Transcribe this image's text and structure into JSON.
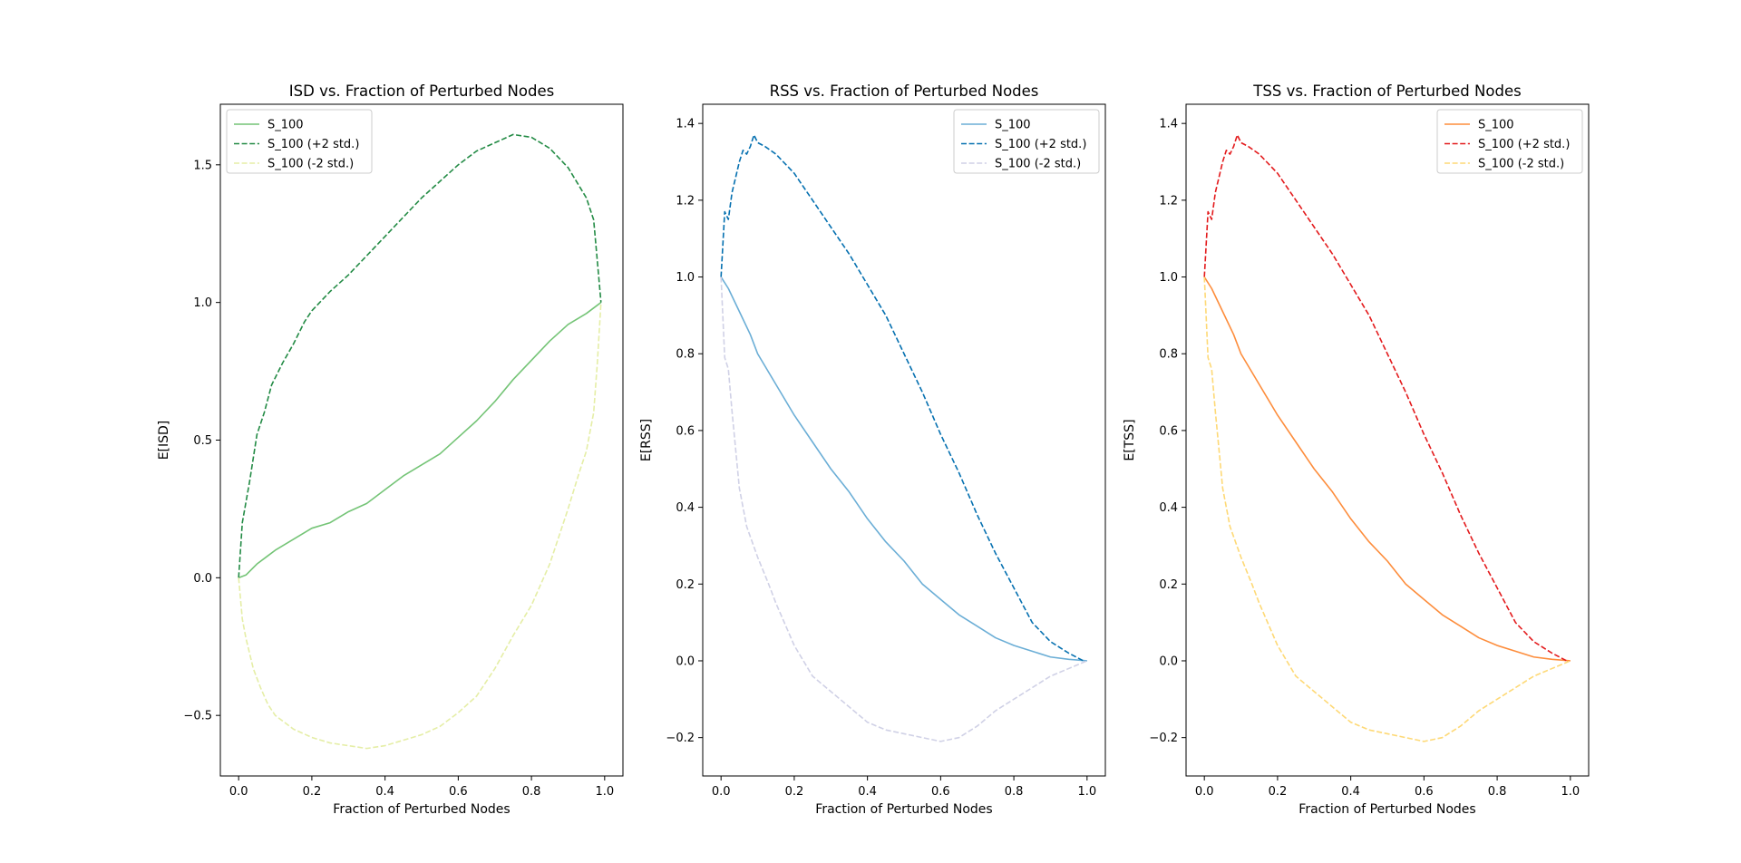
{
  "figure": {
    "background": "#ffffff"
  },
  "chart_data": [
    {
      "type": "line",
      "title": "ISD vs. Fraction of Perturbed Nodes",
      "xlabel": "Fraction of Perturbed Nodes",
      "ylabel": "E[ISD]",
      "xlim": [
        -0.05,
        1.05
      ],
      "ylim": [
        -0.72,
        1.72
      ],
      "xticks": [
        0.0,
        0.2,
        0.4,
        0.6,
        0.8,
        1.0
      ],
      "xtick_labels": [
        "0.0",
        "0.2",
        "0.4",
        "0.6",
        "0.8",
        "1.0"
      ],
      "yticks": [
        -0.5,
        0.0,
        0.5,
        1.0,
        1.5
      ],
      "ytick_labels": [
        "−0.5",
        "0.0",
        "0.5",
        "1.0",
        "1.5"
      ],
      "grid": false,
      "legend_position": "upper-left",
      "series": [
        {
          "name": "S_100",
          "color": "#74c476",
          "dash": "solid",
          "x": [
            0.0,
            0.02,
            0.05,
            0.08,
            0.1,
            0.15,
            0.2,
            0.25,
            0.3,
            0.35,
            0.4,
            0.45,
            0.5,
            0.55,
            0.6,
            0.65,
            0.7,
            0.75,
            0.8,
            0.85,
            0.9,
            0.95,
            0.98,
            0.99
          ],
          "y": [
            0.0,
            0.01,
            0.05,
            0.08,
            0.1,
            0.14,
            0.18,
            0.2,
            0.24,
            0.27,
            0.32,
            0.37,
            0.41,
            0.45,
            0.51,
            0.57,
            0.64,
            0.72,
            0.79,
            0.86,
            0.92,
            0.96,
            0.99,
            1.0
          ]
        },
        {
          "name": "S_100 (+2 std.)",
          "color": "#238b45",
          "dash": "dashed",
          "x": [
            0.0,
            0.01,
            0.03,
            0.05,
            0.07,
            0.09,
            0.12,
            0.15,
            0.18,
            0.2,
            0.25,
            0.3,
            0.35,
            0.4,
            0.45,
            0.5,
            0.55,
            0.6,
            0.65,
            0.7,
            0.75,
            0.8,
            0.85,
            0.9,
            0.95,
            0.97,
            0.98,
            0.99
          ],
          "y": [
            0.0,
            0.2,
            0.35,
            0.52,
            0.6,
            0.7,
            0.78,
            0.85,
            0.93,
            0.97,
            1.04,
            1.1,
            1.17,
            1.24,
            1.31,
            1.38,
            1.44,
            1.5,
            1.55,
            1.58,
            1.61,
            1.6,
            1.56,
            1.49,
            1.38,
            1.3,
            1.15,
            1.0
          ]
        },
        {
          "name": "S_100 (-2 std.)",
          "color": "#e5eea6",
          "dash": "dashed",
          "x": [
            0.0,
            0.01,
            0.02,
            0.04,
            0.06,
            0.08,
            0.1,
            0.15,
            0.2,
            0.25,
            0.3,
            0.35,
            0.4,
            0.45,
            0.5,
            0.55,
            0.6,
            0.65,
            0.7,
            0.75,
            0.8,
            0.85,
            0.9,
            0.93,
            0.95,
            0.97,
            0.98,
            0.99
          ],
          "y": [
            0.0,
            -0.15,
            -0.22,
            -0.33,
            -0.4,
            -0.46,
            -0.5,
            -0.55,
            -0.58,
            -0.6,
            -0.61,
            -0.62,
            -0.61,
            -0.59,
            -0.57,
            -0.54,
            -0.49,
            -0.43,
            -0.33,
            -0.21,
            -0.1,
            0.05,
            0.25,
            0.38,
            0.46,
            0.6,
            0.78,
            1.0
          ]
        }
      ]
    },
    {
      "type": "line",
      "title": "RSS vs. Fraction of Perturbed Nodes",
      "xlabel": "Fraction of Perturbed Nodes",
      "ylabel": "E[RSS]",
      "xlim": [
        -0.05,
        1.05
      ],
      "ylim": [
        -0.3,
        1.45
      ],
      "xticks": [
        0.0,
        0.2,
        0.4,
        0.6,
        0.8,
        1.0
      ],
      "xtick_labels": [
        "0.0",
        "0.2",
        "0.4",
        "0.6",
        "0.8",
        "1.0"
      ],
      "yticks": [
        -0.2,
        0.0,
        0.2,
        0.4,
        0.6,
        0.8,
        1.0,
        1.2,
        1.4
      ],
      "ytick_labels": [
        "−0.2",
        "0.0",
        "0.2",
        "0.4",
        "0.6",
        "0.8",
        "1.0",
        "1.2",
        "1.4"
      ],
      "grid": false,
      "legend_position": "upper-right",
      "series": [
        {
          "name": "S_100",
          "color": "#6baed6",
          "dash": "solid",
          "x": [
            0.0,
            0.02,
            0.05,
            0.08,
            0.1,
            0.15,
            0.2,
            0.25,
            0.3,
            0.35,
            0.4,
            0.45,
            0.5,
            0.55,
            0.6,
            0.65,
            0.7,
            0.75,
            0.8,
            0.85,
            0.9,
            0.95,
            1.0
          ],
          "y": [
            1.0,
            0.97,
            0.91,
            0.85,
            0.8,
            0.72,
            0.64,
            0.57,
            0.5,
            0.44,
            0.37,
            0.31,
            0.26,
            0.2,
            0.16,
            0.12,
            0.09,
            0.06,
            0.04,
            0.025,
            0.01,
            0.004,
            0.0
          ]
        },
        {
          "name": "S_100 (+2 std.)",
          "color": "#0570b0",
          "dash": "dashed",
          "x": [
            0.0,
            0.01,
            0.02,
            0.03,
            0.05,
            0.06,
            0.07,
            0.08,
            0.09,
            0.1,
            0.12,
            0.15,
            0.2,
            0.25,
            0.3,
            0.35,
            0.4,
            0.45,
            0.5,
            0.55,
            0.6,
            0.65,
            0.7,
            0.75,
            0.8,
            0.85,
            0.9,
            0.95,
            0.99
          ],
          "y": [
            1.0,
            1.17,
            1.15,
            1.22,
            1.3,
            1.33,
            1.32,
            1.34,
            1.37,
            1.35,
            1.34,
            1.32,
            1.27,
            1.2,
            1.13,
            1.06,
            0.98,
            0.9,
            0.8,
            0.7,
            0.59,
            0.49,
            0.38,
            0.28,
            0.19,
            0.1,
            0.05,
            0.02,
            0.0
          ]
        },
        {
          "name": "S_100 (-2 std.)",
          "color": "#d0d1e6",
          "dash": "dashed",
          "x": [
            0.0,
            0.01,
            0.02,
            0.03,
            0.05,
            0.07,
            0.1,
            0.13,
            0.15,
            0.2,
            0.25,
            0.3,
            0.35,
            0.4,
            0.45,
            0.5,
            0.55,
            0.6,
            0.65,
            0.7,
            0.75,
            0.8,
            0.85,
            0.9,
            0.95,
            1.0
          ],
          "y": [
            1.0,
            0.79,
            0.76,
            0.65,
            0.45,
            0.35,
            0.27,
            0.2,
            0.15,
            0.04,
            -0.04,
            -0.08,
            -0.12,
            -0.16,
            -0.18,
            -0.19,
            -0.2,
            -0.21,
            -0.2,
            -0.17,
            -0.13,
            -0.1,
            -0.07,
            -0.04,
            -0.02,
            0.0
          ]
        }
      ]
    },
    {
      "type": "line",
      "title": "TSS vs. Fraction of Perturbed Nodes",
      "xlabel": "Fraction of Perturbed Nodes",
      "ylabel": "E[TSS]",
      "xlim": [
        -0.05,
        1.05
      ],
      "ylim": [
        -0.3,
        1.45
      ],
      "xticks": [
        0.0,
        0.2,
        0.4,
        0.6,
        0.8,
        1.0
      ],
      "xtick_labels": [
        "0.0",
        "0.2",
        "0.4",
        "0.6",
        "0.8",
        "1.0"
      ],
      "yticks": [
        -0.2,
        0.0,
        0.2,
        0.4,
        0.6,
        0.8,
        1.0,
        1.2,
        1.4
      ],
      "ytick_labels": [
        "−0.2",
        "0.0",
        "0.2",
        "0.4",
        "0.6",
        "0.8",
        "1.0",
        "1.2",
        "1.4"
      ],
      "grid": false,
      "legend_position": "upper-right",
      "series": [
        {
          "name": "S_100",
          "color": "#fd8d3c",
          "dash": "solid",
          "x": [
            0.0,
            0.02,
            0.05,
            0.08,
            0.1,
            0.15,
            0.2,
            0.25,
            0.3,
            0.35,
            0.4,
            0.45,
            0.5,
            0.55,
            0.6,
            0.65,
            0.7,
            0.75,
            0.8,
            0.85,
            0.9,
            0.95,
            1.0
          ],
          "y": [
            1.0,
            0.97,
            0.91,
            0.85,
            0.8,
            0.72,
            0.64,
            0.57,
            0.5,
            0.44,
            0.37,
            0.31,
            0.26,
            0.2,
            0.16,
            0.12,
            0.09,
            0.06,
            0.04,
            0.025,
            0.01,
            0.004,
            0.0
          ]
        },
        {
          "name": "S_100 (+2 std.)",
          "color": "#e31a1c",
          "dash": "dashed",
          "x": [
            0.0,
            0.01,
            0.02,
            0.03,
            0.05,
            0.06,
            0.07,
            0.08,
            0.09,
            0.1,
            0.12,
            0.15,
            0.2,
            0.25,
            0.3,
            0.35,
            0.4,
            0.45,
            0.5,
            0.55,
            0.6,
            0.65,
            0.7,
            0.75,
            0.8,
            0.85,
            0.9,
            0.95,
            0.99
          ],
          "y": [
            1.0,
            1.17,
            1.15,
            1.22,
            1.3,
            1.33,
            1.32,
            1.34,
            1.37,
            1.35,
            1.34,
            1.32,
            1.27,
            1.2,
            1.13,
            1.06,
            0.98,
            0.9,
            0.8,
            0.7,
            0.59,
            0.49,
            0.38,
            0.28,
            0.19,
            0.1,
            0.05,
            0.02,
            0.0
          ]
        },
        {
          "name": "S_100 (-2 std.)",
          "color": "#fed976",
          "dash": "dashed",
          "x": [
            0.0,
            0.01,
            0.02,
            0.03,
            0.05,
            0.07,
            0.1,
            0.13,
            0.15,
            0.2,
            0.25,
            0.3,
            0.35,
            0.4,
            0.45,
            0.5,
            0.55,
            0.6,
            0.65,
            0.7,
            0.75,
            0.8,
            0.85,
            0.9,
            0.95,
            1.0
          ],
          "y": [
            1.0,
            0.79,
            0.76,
            0.65,
            0.45,
            0.35,
            0.27,
            0.2,
            0.15,
            0.04,
            -0.04,
            -0.08,
            -0.12,
            -0.16,
            -0.18,
            -0.19,
            -0.2,
            -0.21,
            -0.2,
            -0.17,
            -0.13,
            -0.1,
            -0.07,
            -0.04,
            -0.02,
            0.0
          ]
        }
      ]
    }
  ]
}
